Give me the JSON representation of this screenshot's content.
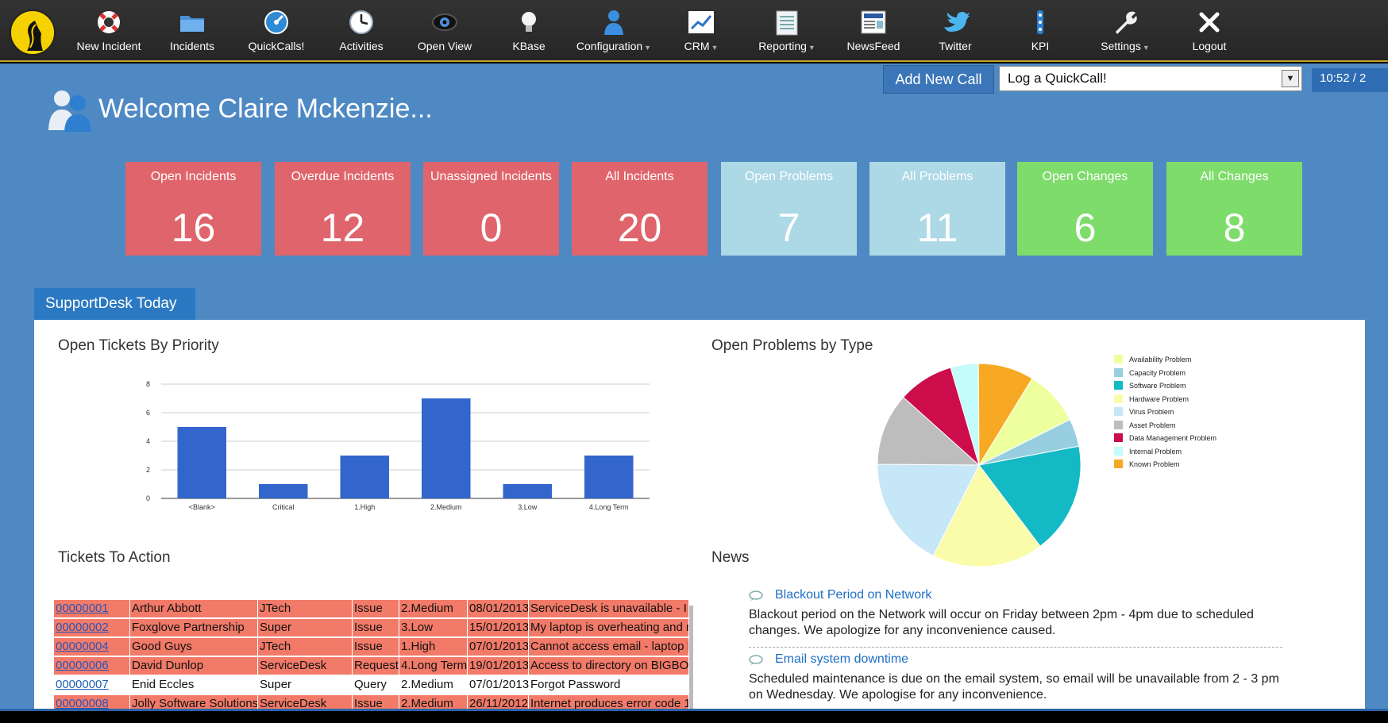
{
  "nav": {
    "items": [
      {
        "label": "New Incident",
        "icon": "lifebuoy-icon",
        "dropdown": false
      },
      {
        "label": "Incidents",
        "icon": "folder-icon",
        "dropdown": false
      },
      {
        "label": "QuickCalls!",
        "icon": "speedometer-icon",
        "dropdown": false
      },
      {
        "label": "Activities",
        "icon": "clock-icon",
        "dropdown": false
      },
      {
        "label": "Open View",
        "icon": "eye-icon",
        "dropdown": false
      },
      {
        "label": "KBase",
        "icon": "lightbulb-icon",
        "dropdown": false
      },
      {
        "label": "Configuration",
        "icon": "user-config-icon",
        "dropdown": true
      },
      {
        "label": "CRM",
        "icon": "chart-line-icon",
        "dropdown": true
      },
      {
        "label": "Reporting",
        "icon": "report-icon",
        "dropdown": true
      },
      {
        "label": "NewsFeed",
        "icon": "newspaper-icon",
        "dropdown": false
      },
      {
        "label": "Twitter",
        "icon": "twitter-bird-icon",
        "dropdown": false
      },
      {
        "label": "KPI",
        "icon": "kpi-icon",
        "dropdown": false
      },
      {
        "label": "Settings",
        "icon": "wrench-icon",
        "dropdown": true
      },
      {
        "label": "Logout",
        "icon": "logout-x-icon",
        "dropdown": false
      }
    ]
  },
  "quickbar": {
    "add_button": "Add New Call",
    "select_value": "Log a QuickCall!",
    "clock": "10:52 / 2"
  },
  "welcome": "Welcome Claire Mckenzie...",
  "tiles": [
    {
      "label": "Open Incidents",
      "count": "16",
      "color": "#e0646b"
    },
    {
      "label": "Overdue Incidents",
      "count": "12",
      "color": "#e0646b"
    },
    {
      "label": "Unassigned Incidents",
      "count": "0",
      "color": "#e0646b"
    },
    {
      "label": "All Incidents",
      "count": "20",
      "color": "#e0646b"
    },
    {
      "label": "Open Problems",
      "count": "7",
      "color": "#add8e6"
    },
    {
      "label": "All Problems",
      "count": "11",
      "color": "#add8e6"
    },
    {
      "label": "Open Changes",
      "count": "6",
      "color": "#7edc6b"
    },
    {
      "label": "All Changes",
      "count": "8",
      "color": "#7edc6b"
    }
  ],
  "tab": "SupportDesk Today",
  "sections": {
    "bar_title": "Open Tickets By Priority",
    "pie_title": "Open Problems by Type",
    "tickets_title": "Tickets To Action",
    "news_title": "News"
  },
  "chart_data": [
    {
      "type": "bar",
      "title": "Open Tickets By Priority",
      "categories": [
        "<Blank>",
        "Critical",
        "1.High",
        "2.Medium",
        "3.Low",
        "4.Long Term"
      ],
      "values": [
        5,
        1,
        3,
        7,
        1,
        3
      ],
      "ylim": [
        0,
        8
      ],
      "yticks": [
        0,
        2,
        4,
        6,
        8
      ],
      "grid": true,
      "color": "#3366cc"
    },
    {
      "type": "pie",
      "title": "Open Problems by Type",
      "legend_position": "right",
      "slices": [
        {
          "label": "Availability Problem",
          "value": 1,
          "color": "#eeff9e"
        },
        {
          "label": "Capacity Problem",
          "value": 0.5,
          "color": "#98cfe0"
        },
        {
          "label": "Software Problem",
          "value": 2,
          "color": "#13b9c4"
        },
        {
          "label": "Hardware Problem",
          "value": 2,
          "color": "#fafcaa"
        },
        {
          "label": "Virus Problem",
          "value": 2,
          "color": "#c6e7f7"
        },
        {
          "label": "Asset Problem",
          "value": 1.3,
          "color": "#bdbdbd"
        },
        {
          "label": "Data Management Problem",
          "value": 1,
          "color": "#cc0c4b"
        },
        {
          "label": "Internal Problem",
          "value": 0.5,
          "color": "#c4fbfb"
        },
        {
          "label": "Known Problem",
          "value": 1,
          "color": "#f7a924"
        }
      ],
      "legend_entries": [
        "Availability Problem",
        "Capacity Problem",
        "Software Problem",
        "Hardware Problem",
        "Virus Problem",
        "Asset Problem",
        "Data Management Problem",
        "Internal Problem",
        "Known Problem"
      ]
    }
  ],
  "tickets": [
    {
      "id": "00000001",
      "name": "Arthur Abbott",
      "company": "JTech",
      "type": "Issue",
      "priority": "2.Medium",
      "date": "08/01/2013",
      "summary": "ServiceDesk is unavailable - I c",
      "overdue": true
    },
    {
      "id": "00000002",
      "name": "Foxglove Partnership",
      "company": "Super",
      "type": "Issue",
      "priority": "3.Low",
      "date": "15/01/2013",
      "summary": "My laptop is overheating and re",
      "overdue": true
    },
    {
      "id": "00000004",
      "name": "Good Guys",
      "company": "JTech",
      "type": "Issue",
      "priority": "1.High",
      "date": "07/01/2013",
      "summary": "Cannot access email - laptop ha",
      "overdue": true
    },
    {
      "id": "00000006",
      "name": "David Dunlop",
      "company": "ServiceDesk",
      "type": "Request",
      "priority": "4.Long Term",
      "date": "19/01/2013",
      "summary": "Access to directory on BIGBOY",
      "overdue": true
    },
    {
      "id": "00000007",
      "name": "Enid Eccles",
      "company": "Super",
      "type": "Query",
      "priority": "2.Medium",
      "date": "07/01/2013",
      "summary": "Forgot Password",
      "overdue": false
    },
    {
      "id": "00000008",
      "name": "Jolly Software Solutions",
      "company": "ServiceDesk",
      "type": "Issue",
      "priority": "2.Medium",
      "date": "26/11/2012",
      "summary": "Internet produces error code 1",
      "overdue": true
    }
  ],
  "news": [
    {
      "title": "Blackout Period on Network",
      "body": "Blackout period on the Network will occur on Friday between 2pm - 4pm due to scheduled changes. We apologize for any inconvenience caused."
    },
    {
      "title": "Email system downtime",
      "body": "Scheduled maintenance is due on the email system, so email will be unavailable from 2 - 3 pm on Wednesday. We apologise for any inconvenience."
    }
  ]
}
